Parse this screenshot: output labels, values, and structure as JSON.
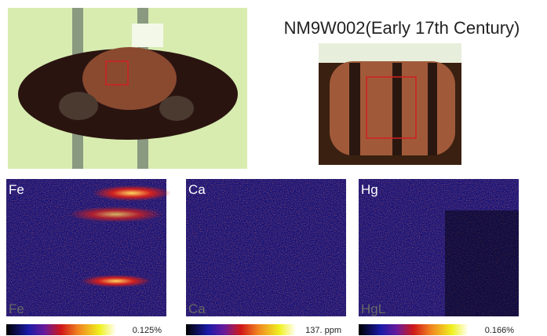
{
  "title": "NM9W002(Early 17th Century)",
  "maps": [
    {
      "element": "Fe",
      "corner_label": "Fe",
      "scale_label": "0.125%"
    },
    {
      "element": "Ca",
      "corner_label": "Ca",
      "scale_label": "137. ppm"
    },
    {
      "element": "Hg",
      "corner_label": "HgL",
      "scale_label": "0.166%"
    }
  ]
}
